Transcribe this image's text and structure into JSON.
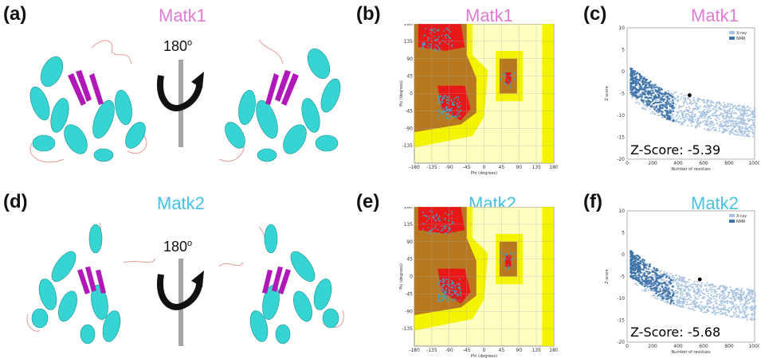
{
  "colors": {
    "matk1": "#e37ad5",
    "matk2": "#45c1e6",
    "helix": "#37d4d4",
    "sheet": "#b118b8",
    "coil": "#e39a9a"
  },
  "rows": [
    {
      "protein": "Matk1",
      "structure_label": "(a)",
      "ramachandran_label": "(b)",
      "zscore_label": "(c)",
      "rotation": "180",
      "rotation_unit": "o",
      "zscore_text": "Z-Score: -5.39",
      "zscore_value": -5.39,
      "residues": 490
    },
    {
      "protein": "Matk2",
      "structure_label": "(d)",
      "ramachandran_label": "(e)",
      "zscore_label": "(f)",
      "rotation": "180",
      "rotation_unit": "o",
      "zscore_text": "Z-Score: -5.68",
      "zscore_value": -5.68,
      "residues": 570
    }
  ],
  "ramachandran": {
    "xlabel": "Phi (degrees)",
    "ylabel": "Psi (degrees)",
    "ticks": [
      "-180",
      "-135",
      "-90",
      "-45",
      "0",
      "45",
      "90",
      "135",
      "180"
    ],
    "range": [
      -180,
      180
    ]
  },
  "zplot": {
    "xlabel": "Number of residues",
    "ylabel": "Z-score",
    "xticks": [
      "0",
      "200",
      "400",
      "600",
      "800",
      "1000"
    ],
    "yticks": [
      "10",
      "5",
      "0",
      "-5",
      "-10",
      "-15",
      "-20"
    ],
    "legend": [
      "X-ray",
      "NMR"
    ],
    "xlim": [
      0,
      1000
    ],
    "ylim": [
      -20,
      10
    ]
  }
}
